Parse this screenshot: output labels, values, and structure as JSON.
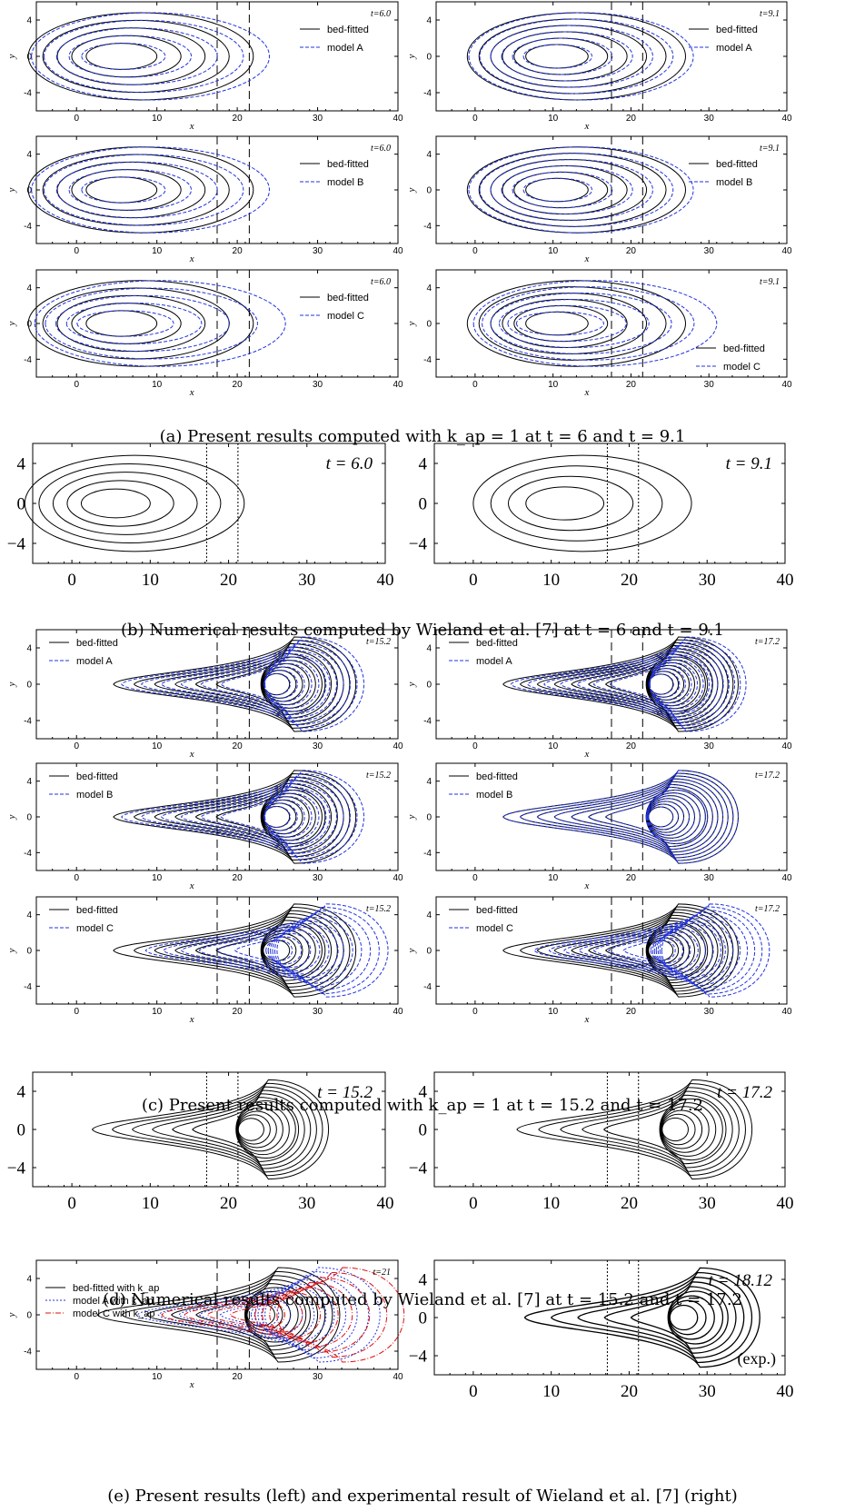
{
  "captions": {
    "a": "(a) Present results computed with k_ap = 1 at t = 6 and t = 9.1",
    "b": "(b) Numerical results computed by Wieland et al. [7] at t = 6 and t = 9.1",
    "c": "(c) Present results computed with k_ap = 1 at t = 15.2 and t = 17.2",
    "d": "(d) Numerical results computed by Wieland et al. [7] at t = 15.2 and t = 17.2",
    "e": "(e) Present results (left) and experimental result of Wieland et al. [7] (right)"
  },
  "chart_data": [
    {
      "id": "a-l1",
      "type": "contour",
      "time_label": "t=6.0",
      "legend": [
        "bed-fitted",
        "model A"
      ],
      "xlabel": "x",
      "ylabel": "y",
      "xlim": [
        -5,
        40
      ],
      "ylim": [
        -6,
        6
      ],
      "xticks": [
        0,
        10,
        20,
        30,
        40
      ],
      "yticks": [
        -4,
        0,
        4
      ],
      "vlines": [
        17.5,
        21.5
      ],
      "peak_x": 5,
      "rings": 5,
      "model_shift": 2,
      "colors": [
        "#000000",
        "#2233dd"
      ]
    },
    {
      "id": "a-r1",
      "type": "contour",
      "time_label": "t=9.1",
      "legend": [
        "bed-fitted",
        "model A"
      ],
      "xlabel": "x",
      "ylabel": "y",
      "xlim": [
        -5,
        40
      ],
      "ylim": [
        -6,
        6
      ],
      "xticks": [
        0,
        10,
        20,
        30,
        40
      ],
      "yticks": [
        -4,
        0,
        4
      ],
      "vlines": [
        17.5,
        21.5
      ],
      "peak_x": 10,
      "rings": 6,
      "model_shift": 1,
      "colors": [
        "#000000",
        "#2233dd"
      ]
    },
    {
      "id": "a-l2",
      "type": "contour",
      "time_label": "t=6.0",
      "legend": [
        "bed-fitted",
        "model B"
      ],
      "xlabel": "x",
      "ylabel": "y",
      "xlim": [
        -5,
        40
      ],
      "ylim": [
        -6,
        6
      ],
      "xticks": [
        0,
        10,
        20,
        30,
        40
      ],
      "yticks": [
        -4,
        0,
        4
      ],
      "vlines": [
        17.5,
        21.5
      ],
      "peak_x": 5,
      "rings": 5,
      "model_shift": 2,
      "colors": [
        "#000000",
        "#2233dd"
      ]
    },
    {
      "id": "a-r2",
      "type": "contour",
      "time_label": "t=9.1",
      "legend": [
        "bed-fitted",
        "model B"
      ],
      "xlabel": "x",
      "ylabel": "y",
      "xlim": [
        -5,
        40
      ],
      "ylim": [
        -6,
        6
      ],
      "xticks": [
        0,
        10,
        20,
        30,
        40
      ],
      "yticks": [
        -4,
        0,
        4
      ],
      "vlines": [
        17.5,
        21.5
      ],
      "peak_x": 10,
      "rings": 6,
      "model_shift": 1,
      "colors": [
        "#000000",
        "#2233dd"
      ]
    },
    {
      "id": "a-l3",
      "type": "contour",
      "time_label": "t=6.0",
      "legend": [
        "bed-fitted",
        "model C"
      ],
      "xlabel": "x",
      "ylabel": "y",
      "xlim": [
        -5,
        40
      ],
      "ylim": [
        -6,
        6
      ],
      "xticks": [
        0,
        10,
        20,
        30,
        40
      ],
      "yticks": [
        -4,
        0,
        4
      ],
      "vlines": [
        17.5,
        21.5
      ],
      "peak_x": 5,
      "rings": 5,
      "model_shift": 4,
      "colors": [
        "#000000",
        "#2233dd"
      ]
    },
    {
      "id": "a-r3",
      "type": "contour",
      "time_label": "t=9.1",
      "legend": [
        "bed-fitted",
        "model C"
      ],
      "xlabel": "x",
      "ylabel": "y",
      "xlim": [
        -5,
        40
      ],
      "ylim": [
        -6,
        6
      ],
      "xticks": [
        0,
        10,
        20,
        30,
        40
      ],
      "yticks": [
        -4,
        0,
        4
      ],
      "vlines": [
        17.5,
        21.5
      ],
      "peak_x": 10,
      "rings": 6,
      "model_shift": 4,
      "colors": [
        "#000000",
        "#2233dd"
      ]
    },
    {
      "id": "b-l",
      "type": "contour",
      "time_label": "t = 6.0",
      "xlim": [
        -5,
        40
      ],
      "ylim": [
        -6,
        6
      ],
      "xticks": [
        0,
        10,
        20,
        30,
        40
      ],
      "yticks": [
        -4,
        0,
        4
      ],
      "ytick_labels": [
        "−4",
        "0",
        "4"
      ],
      "vlines": [
        17.2,
        21.2
      ],
      "peak_x": 5,
      "rings": 5,
      "colors": [
        "#000000"
      ]
    },
    {
      "id": "b-r",
      "type": "contour",
      "time_label": "t = 9.1",
      "xlim": [
        -5,
        40
      ],
      "ylim": [
        -6,
        6
      ],
      "xticks": [
        0,
        10,
        20,
        30,
        40
      ],
      "yticks": [
        -4,
        0,
        4
      ],
      "ytick_labels": [
        "−4",
        "0",
        "4"
      ],
      "vlines": [
        17.2,
        21.2
      ],
      "peak_x": 11,
      "rings": 4,
      "colors": [
        "#000000"
      ]
    },
    {
      "id": "c-l1",
      "type": "contour",
      "time_label": "t=15.2",
      "legend": [
        "bed-fitted",
        "model A"
      ],
      "xlabel": "x",
      "ylabel": "y",
      "xlim": [
        -5,
        40
      ],
      "ylim": [
        -6,
        6
      ],
      "xticks": [
        0,
        10,
        20,
        30,
        40
      ],
      "yticks": [
        -4,
        0,
        4
      ],
      "vlines": [
        17.5,
        21.5
      ],
      "peak_x": 23,
      "rings": 12,
      "model_shift": 1,
      "colors": [
        "#000000",
        "#2233dd"
      ]
    },
    {
      "id": "c-r1",
      "type": "contour",
      "time_label": "t=17.2",
      "legend": [
        "bed-fitted",
        "model A"
      ],
      "xlabel": "x",
      "ylabel": "y",
      "xlim": [
        -5,
        40
      ],
      "ylim": [
        -6,
        6
      ],
      "xticks": [
        0,
        10,
        20,
        30,
        40
      ],
      "yticks": [
        -4,
        0,
        4
      ],
      "vlines": [
        17.5,
        21.5
      ],
      "peak_x": 22,
      "rings": 14,
      "model_shift": 1,
      "colors": [
        "#000000",
        "#2233dd"
      ]
    },
    {
      "id": "c-l2",
      "type": "contour",
      "time_label": "t=15.2",
      "legend": [
        "bed-fitted",
        "model B"
      ],
      "xlabel": "x",
      "ylabel": "y",
      "xlim": [
        -5,
        40
      ],
      "ylim": [
        -6,
        6
      ],
      "xticks": [
        0,
        10,
        20,
        30,
        40
      ],
      "yticks": [
        -4,
        0,
        4
      ],
      "vlines": [
        17.5,
        21.5
      ],
      "peak_x": 23,
      "rings": 12,
      "model_shift": 1,
      "colors": [
        "#000000",
        "#2233dd"
      ]
    },
    {
      "id": "c-r2",
      "type": "contour",
      "time_label": "t=17.2",
      "legend": [
        "bed-fitted",
        "model B"
      ],
      "xlabel": "x",
      "ylabel": "y",
      "xlim": [
        -5,
        40
      ],
      "ylim": [
        -6,
        6
      ],
      "xticks": [
        0,
        10,
        20,
        30,
        40
      ],
      "yticks": [
        -4,
        0,
        4
      ],
      "vlines": [
        17.5,
        21.5
      ],
      "peak_x": 22,
      "rings": 14,
      "model_shift": 0,
      "colors": [
        "#000000",
        "#2233dd"
      ]
    },
    {
      "id": "c-l3",
      "type": "contour",
      "time_label": "t=15.2",
      "legend": [
        "bed-fitted",
        "model C"
      ],
      "xlabel": "x",
      "ylabel": "y",
      "xlim": [
        -5,
        40
      ],
      "ylim": [
        -6,
        6
      ],
      "xticks": [
        0,
        10,
        20,
        30,
        40
      ],
      "yticks": [
        -4,
        0,
        4
      ],
      "vlines": [
        17.5,
        21.5
      ],
      "peak_x": 23,
      "rings": 12,
      "model_shift": 4,
      "colors": [
        "#000000",
        "#2233dd"
      ]
    },
    {
      "id": "c-r3",
      "type": "contour",
      "time_label": "t=17.2",
      "legend": [
        "bed-fitted",
        "model C"
      ],
      "xlabel": "x",
      "ylabel": "y",
      "xlim": [
        -5,
        40
      ],
      "ylim": [
        -6,
        6
      ],
      "xticks": [
        0,
        10,
        20,
        30,
        40
      ],
      "yticks": [
        -4,
        0,
        4
      ],
      "vlines": [
        17.5,
        21.5
      ],
      "peak_x": 22,
      "rings": 14,
      "model_shift": 4,
      "colors": [
        "#000000",
        "#2233dd"
      ]
    },
    {
      "id": "d-l",
      "type": "contour",
      "time_label": "t = 15.2",
      "xlim": [
        -5,
        40
      ],
      "ylim": [
        -6,
        6
      ],
      "xticks": [
        0,
        10,
        20,
        30,
        40
      ],
      "yticks": [
        -4,
        0,
        4
      ],
      "ytick_labels": [
        "−4",
        "0",
        "4"
      ],
      "vlines": [
        17.2,
        21.2
      ],
      "peak_x": 21,
      "rings": 12,
      "colors": [
        "#000000"
      ]
    },
    {
      "id": "d-r",
      "type": "contour",
      "time_label": "t = 17.2",
      "xlim": [
        -5,
        40
      ],
      "ylim": [
        -6,
        6
      ],
      "xticks": [
        0,
        10,
        20,
        30,
        40
      ],
      "yticks": [
        -4,
        0,
        4
      ],
      "ytick_labels": [
        "−4",
        "0",
        "4"
      ],
      "vlines": [
        17.2,
        21.2
      ],
      "peak_x": 24,
      "rings": 11,
      "colors": [
        "#000000"
      ]
    },
    {
      "id": "e-l",
      "type": "contour",
      "time_label": "t=21",
      "legend": [
        "bed-fitted with k_ap",
        "model A with k_ap",
        "model C with k_ap"
      ],
      "xlabel": "x",
      "ylabel": "y",
      "xlim": [
        -5,
        40
      ],
      "ylim": [
        -6,
        6
      ],
      "xticks": [
        0,
        10,
        20,
        30,
        40
      ],
      "yticks": [
        -4,
        0,
        4
      ],
      "vlines": [
        17.5,
        21.5
      ],
      "peak_x": 21,
      "rings": 10,
      "model_shift": 5,
      "colors": [
        "#000000",
        "#2233dd",
        "#dd1111"
      ]
    },
    {
      "id": "e-r",
      "type": "contour",
      "time_label": "t = 18.12",
      "corner_label": "(exp.)",
      "xlim": [
        -5,
        40
      ],
      "ylim": [
        -6,
        6
      ],
      "xticks": [
        0,
        10,
        20,
        30,
        40
      ],
      "yticks": [
        -4,
        0,
        4
      ],
      "ytick_labels": [
        "−4",
        "0",
        "4"
      ],
      "vlines": [
        17.2,
        21.2
      ],
      "peak_x": 25,
      "rings": 9,
      "colors": [
        "#000000"
      ]
    }
  ]
}
